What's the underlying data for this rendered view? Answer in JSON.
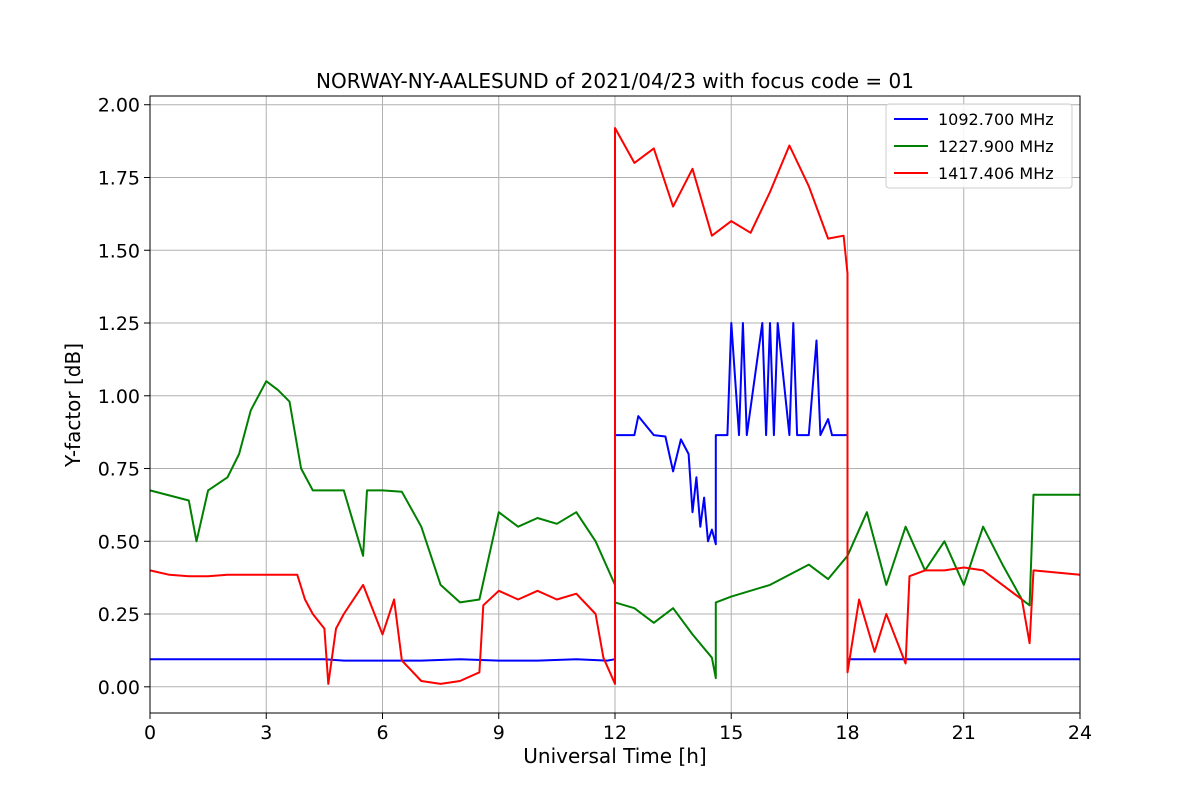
{
  "chart_data": {
    "type": "line",
    "title": "NORWAY-NY-AALESUND of 2021/04/23 with focus code = 01",
    "xlabel": "Universal Time [h]",
    "ylabel": "Y-factor [dB]",
    "xlim": [
      0,
      24
    ],
    "ylim": [
      -0.09,
      2.03
    ],
    "x_ticks": [
      0,
      3,
      6,
      9,
      12,
      15,
      18,
      21,
      24
    ],
    "x_tick_labels": [
      "0",
      "3",
      "6",
      "9",
      "12",
      "15",
      "18",
      "21",
      "24"
    ],
    "y_ticks": [
      0.0,
      0.25,
      0.5,
      0.75,
      1.0,
      1.25,
      1.5,
      1.75,
      2.0
    ],
    "y_tick_labels": [
      "0.00",
      "0.25",
      "0.50",
      "0.75",
      "1.00",
      "1.25",
      "1.50",
      "1.75",
      "2.00"
    ],
    "grid": true,
    "legend_position": "top-right",
    "series": [
      {
        "name": "1092.700 MHz",
        "color": "#0000ff",
        "x": [
          0,
          4.5,
          5.0,
          6.0,
          7.0,
          8.0,
          9.0,
          10.0,
          11.0,
          11.8,
          12.0,
          12.0,
          12.5,
          12.6,
          13.0,
          13.3,
          13.5,
          13.7,
          13.9,
          14.0,
          14.1,
          14.2,
          14.3,
          14.4,
          14.5,
          14.6,
          14.6,
          14.9,
          15.0,
          15.2,
          15.3,
          15.4,
          15.8,
          15.9,
          16.0,
          16.1,
          16.2,
          16.5,
          16.6,
          16.7,
          17.0,
          17.2,
          17.3,
          17.5,
          17.6,
          18.0,
          18.0,
          24.0
        ],
        "values": [
          0.095,
          0.095,
          0.09,
          0.09,
          0.09,
          0.095,
          0.09,
          0.09,
          0.095,
          0.09,
          0.095,
          0.865,
          0.865,
          0.93,
          0.865,
          0.86,
          0.74,
          0.85,
          0.8,
          0.6,
          0.72,
          0.55,
          0.65,
          0.5,
          0.54,
          0.49,
          0.865,
          0.865,
          1.25,
          0.865,
          1.25,
          0.865,
          1.25,
          0.865,
          1.25,
          0.865,
          1.25,
          0.865,
          1.25,
          0.865,
          0.865,
          1.19,
          0.865,
          0.92,
          0.865,
          0.865,
          0.095,
          0.095
        ]
      },
      {
        "name": "1227.900 MHz",
        "color": "#008000",
        "x": [
          0,
          1.0,
          1.2,
          1.5,
          2.0,
          2.3,
          2.6,
          3.0,
          3.3,
          3.6,
          3.9,
          4.2,
          4.5,
          5.0,
          5.5,
          5.6,
          6.0,
          6.5,
          7.0,
          7.5,
          8.0,
          8.5,
          9.0,
          9.5,
          10.0,
          10.5,
          11.0,
          11.5,
          12.0,
          12.0,
          12.5,
          13.0,
          13.5,
          14.0,
          14.5,
          14.6,
          14.6,
          15.0,
          16.0,
          17.0,
          17.5,
          18.0,
          18.5,
          19.0,
          19.5,
          20.0,
          20.5,
          21.0,
          21.5,
          22.0,
          22.5,
          22.7,
          22.8,
          24.0
        ],
        "values": [
          0.675,
          0.64,
          0.5,
          0.675,
          0.72,
          0.8,
          0.95,
          1.05,
          1.02,
          0.98,
          0.75,
          0.675,
          0.675,
          0.675,
          0.45,
          0.675,
          0.675,
          0.67,
          0.55,
          0.35,
          0.29,
          0.3,
          0.6,
          0.55,
          0.58,
          0.56,
          0.6,
          0.5,
          0.35,
          0.29,
          0.27,
          0.22,
          0.27,
          0.18,
          0.1,
          0.03,
          0.29,
          0.31,
          0.35,
          0.42,
          0.37,
          0.45,
          0.6,
          0.35,
          0.55,
          0.4,
          0.5,
          0.35,
          0.55,
          0.42,
          0.3,
          0.28,
          0.66,
          0.66
        ]
      },
      {
        "name": "1417.406 MHz",
        "color": "#ff0000",
        "x": [
          0,
          0.5,
          1.0,
          1.5,
          2.0,
          2.5,
          3.0,
          3.5,
          3.8,
          4.0,
          4.2,
          4.5,
          4.6,
          4.8,
          5.0,
          5.5,
          6.0,
          6.3,
          6.5,
          7.0,
          7.5,
          8.0,
          8.5,
          8.6,
          9.0,
          9.5,
          10.0,
          10.5,
          11.0,
          11.5,
          11.7,
          12.0,
          12.0,
          12.5,
          13.0,
          13.5,
          14.0,
          14.5,
          15.0,
          15.5,
          16.0,
          16.5,
          17.0,
          17.5,
          17.9,
          18.0,
          18.0,
          18.3,
          18.7,
          19.0,
          19.5,
          19.6,
          20.0,
          20.5,
          21.0,
          21.5,
          22.0,
          22.5,
          22.7,
          22.8,
          24.0
        ],
        "values": [
          0.4,
          0.385,
          0.38,
          0.38,
          0.385,
          0.385,
          0.385,
          0.385,
          0.385,
          0.3,
          0.25,
          0.2,
          0.01,
          0.2,
          0.25,
          0.35,
          0.18,
          0.3,
          0.09,
          0.02,
          0.01,
          0.02,
          0.05,
          0.28,
          0.33,
          0.3,
          0.33,
          0.3,
          0.32,
          0.25,
          0.1,
          0.01,
          1.92,
          1.8,
          1.85,
          1.65,
          1.78,
          1.55,
          1.6,
          1.56,
          1.7,
          1.86,
          1.72,
          1.54,
          1.55,
          1.42,
          0.05,
          0.3,
          0.12,
          0.25,
          0.08,
          0.38,
          0.4,
          0.4,
          0.41,
          0.4,
          0.35,
          0.3,
          0.15,
          0.4,
          0.385
        ]
      }
    ]
  }
}
